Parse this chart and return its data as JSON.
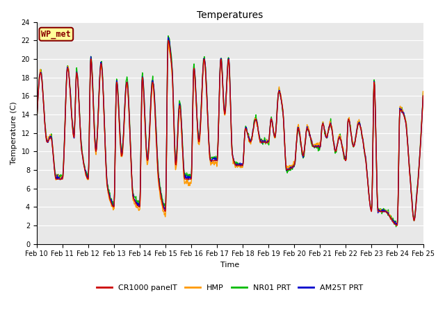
{
  "title": "Temperatures",
  "ylabel": "Temperature (C)",
  "xlabel": "Time",
  "ylim": [
    0,
    24
  ],
  "bg_color": "#e8e8e8",
  "fig_bg": "#ffffff",
  "legend_labels": [
    "CR1000 panelT",
    "HMP",
    "NR01 PRT",
    "AM25T PRT"
  ],
  "legend_colors": [
    "#cc0000",
    "#ff9900",
    "#00bb00",
    "#0000cc"
  ],
  "annotation_text": "WP_met",
  "annotation_bg": "#ffff99",
  "annotation_border": "#880000",
  "x_tick_labels": [
    "Feb 10",
    "Feb 11",
    "Feb 12",
    "Feb 13",
    "Feb 14",
    "Feb 15",
    "Feb 16",
    "Feb 17",
    "Feb 18",
    "Feb 19",
    "Feb 20",
    "Feb 21",
    "Feb 22",
    "Feb 23",
    "Feb 24",
    "Feb 25"
  ],
  "y_ticks": [
    0,
    2,
    4,
    6,
    8,
    10,
    12,
    14,
    16,
    18,
    20,
    22,
    24
  ],
  "line_width": 1.0,
  "title_fontsize": 10,
  "label_fontsize": 8,
  "tick_fontsize": 7,
  "legend_fontsize": 8
}
